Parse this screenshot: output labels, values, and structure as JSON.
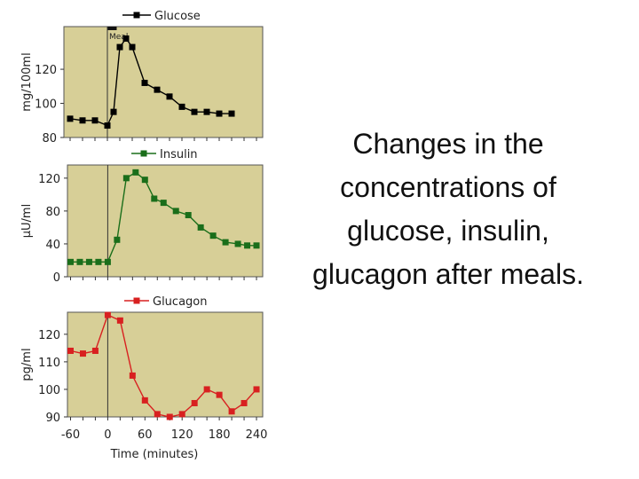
{
  "caption": "Changes in the concentrations of glucose, insulin, glucagon after meals.",
  "chart_data": [
    {
      "type": "line",
      "series": [
        {
          "name": "Glucose",
          "color": "#000000",
          "x": [
            -60,
            -40,
            -20,
            0,
            10,
            20,
            30,
            40,
            60,
            80,
            100,
            120,
            140,
            160,
            180,
            200
          ],
          "y": [
            91,
            90,
            90,
            87,
            95,
            133,
            138,
            133,
            112,
            108,
            104,
            98,
            95,
            95,
            94,
            94
          ]
        }
      ],
      "ylabel": "mg/100ml",
      "ylim": [
        80,
        145
      ],
      "xlim": [
        -70,
        250
      ],
      "yticks": [
        80,
        100,
        120
      ],
      "meal_label": "Meal",
      "meal_range": [
        0,
        15
      ],
      "panel_color": "#d7cf97"
    },
    {
      "type": "line",
      "series": [
        {
          "name": "Insulin",
          "color": "#1a6e1a",
          "x": [
            -60,
            -45,
            -30,
            -15,
            0,
            15,
            30,
            45,
            60,
            75,
            90,
            110,
            130,
            150,
            170,
            190,
            210,
            225,
            240
          ],
          "y": [
            18,
            18,
            18,
            18,
            18,
            45,
            120,
            127,
            118,
            95,
            90,
            80,
            75,
            60,
            50,
            42,
            40,
            38,
            38
          ]
        }
      ],
      "ylabel": "μU/ml",
      "ylim": [
        0,
        136
      ],
      "xlim": [
        -65,
        250
      ],
      "yticks": [
        0,
        40,
        80,
        120
      ],
      "panel_color": "#d7cf97"
    },
    {
      "type": "line",
      "series": [
        {
          "name": "Glucagon",
          "color": "#d82020",
          "x": [
            -60,
            -40,
            -20,
            0,
            20,
            40,
            60,
            80,
            100,
            120,
            140,
            160,
            180,
            200,
            220,
            240
          ],
          "y": [
            114,
            113,
            114,
            127,
            125,
            105,
            96,
            91,
            90,
            91,
            95,
            100,
            98,
            92,
            95,
            100
          ]
        }
      ],
      "ylabel": "pg/ml",
      "ylim": [
        90,
        128
      ],
      "xlim": [
        -65,
        250
      ],
      "yticks": [
        90,
        100,
        110,
        120
      ],
      "xticks": [
        -60,
        0,
        60,
        120,
        180,
        240
      ],
      "xlabel": "Time (minutes)",
      "panel_color": "#d7cf97"
    }
  ]
}
